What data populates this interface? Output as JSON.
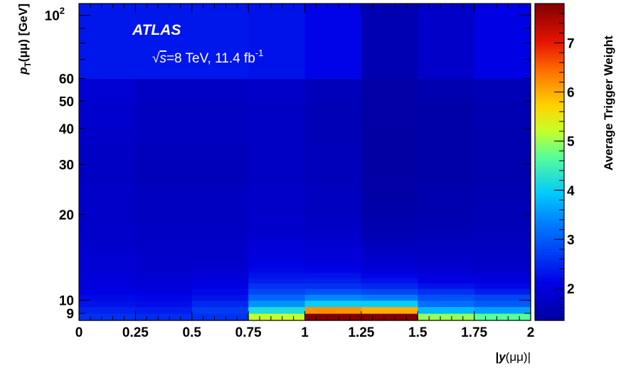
{
  "chart_data": {
    "type": "heatmap",
    "experiment_label": "ATLAS",
    "energy_label": {
      "sqrt": "√",
      "s": "s",
      "rest": "=8 TeV, 11.4 fb",
      "sup": "-1"
    },
    "xlabel": {
      "open": "|",
      "var": "y",
      "rest": "(μμ)|"
    },
    "ylabel": {
      "var": "p",
      "sub": "T",
      "rest": "(μμ) [GeV]"
    },
    "zlabel": "Average Trigger Weight",
    "x_edges": [
      0,
      0.25,
      0.5,
      0.75,
      1.0,
      1.25,
      1.5,
      1.75,
      2.0
    ],
    "y_edges": [
      8.5,
      9,
      9.5,
      10,
      10.5,
      11,
      11.5,
      12,
      12.5,
      13,
      14,
      15,
      16,
      17,
      18,
      20,
      22,
      25,
      30,
      35,
      40,
      50,
      60,
      110
    ],
    "x_range": [
      0,
      2
    ],
    "y_range": [
      8.5,
      110
    ],
    "z_range": [
      1.35,
      7.8
    ],
    "y_log": true,
    "x_ticks": [
      {
        "value": 0,
        "label": "0"
      },
      {
        "value": 0.25,
        "label": "0.25"
      },
      {
        "value": 0.5,
        "label": "0.5"
      },
      {
        "value": 0.75,
        "label": "0.75"
      },
      {
        "value": 1.0,
        "label": "1"
      },
      {
        "value": 1.25,
        "label": "1.25"
      },
      {
        "value": 1.5,
        "label": "1.5"
      },
      {
        "value": 1.75,
        "label": "1.75"
      },
      {
        "value": 2.0,
        "label": "2"
      }
    ],
    "y_ticks": [
      {
        "value": 9,
        "label": "9"
      },
      {
        "value": 10,
        "label": "10"
      },
      {
        "value": 20,
        "label": "20"
      },
      {
        "value": 30,
        "label": "30"
      },
      {
        "value": 40,
        "label": "40"
      },
      {
        "value": 50,
        "label": "50"
      },
      {
        "value": 60,
        "label": "60"
      },
      {
        "value": 100,
        "label": "10",
        "sup": "2"
      }
    ],
    "z_ticks": [
      {
        "value": 2,
        "label": "2"
      },
      {
        "value": 3,
        "label": "3"
      },
      {
        "value": 4,
        "label": "4"
      },
      {
        "value": 5,
        "label": "5"
      },
      {
        "value": 6,
        "label": "6"
      },
      {
        "value": 7,
        "label": "7"
      }
    ],
    "z_values": [
      [
        2.6,
        2.55,
        2.6,
        5.2,
        7.8,
        7.8,
        5.0,
        4.7
      ],
      [
        2.45,
        2.4,
        2.7,
        4.2,
        6.2,
        6.0,
        3.8,
        3.6
      ],
      [
        2.3,
        2.25,
        2.5,
        3.5,
        4.0,
        4.0,
        3.2,
        3.0
      ],
      [
        2.2,
        2.15,
        2.3,
        3.1,
        3.4,
        3.3,
        2.9,
        2.8
      ],
      [
        2.1,
        2.05,
        2.2,
        2.8,
        2.9,
        2.8,
        2.6,
        2.4
      ],
      [
        2.05,
        2.0,
        2.1,
        2.6,
        2.6,
        2.5,
        2.3,
        2.2
      ],
      [
        2.0,
        1.95,
        2.0,
        2.4,
        2.4,
        2.3,
        2.1,
        2.05
      ],
      [
        2.0,
        1.9,
        1.95,
        2.3,
        2.3,
        2.15,
        2.0,
        1.95
      ],
      [
        1.95,
        1.85,
        1.9,
        2.2,
        2.15,
        2.0,
        1.9,
        1.85
      ],
      [
        1.9,
        1.85,
        1.85,
        2.1,
        2.05,
        1.9,
        1.85,
        1.8
      ],
      [
        1.9,
        1.8,
        1.8,
        2.0,
        1.95,
        1.8,
        1.75,
        1.75
      ],
      [
        1.85,
        1.8,
        1.8,
        1.95,
        1.9,
        1.7,
        1.7,
        1.7
      ],
      [
        1.85,
        1.75,
        1.75,
        1.9,
        1.85,
        1.6,
        1.65,
        1.7
      ],
      [
        1.85,
        1.75,
        1.75,
        1.85,
        1.8,
        1.55,
        1.6,
        1.65
      ],
      [
        1.8,
        1.7,
        1.7,
        1.85,
        1.75,
        1.5,
        1.55,
        1.6
      ],
      [
        1.8,
        1.7,
        1.7,
        1.8,
        1.7,
        1.45,
        1.5,
        1.6
      ],
      [
        1.8,
        1.7,
        1.7,
        1.8,
        1.7,
        1.4,
        1.5,
        1.55
      ],
      [
        1.75,
        1.65,
        1.65,
        1.75,
        1.65,
        1.4,
        1.45,
        1.5
      ],
      [
        1.75,
        1.65,
        1.65,
        1.75,
        1.65,
        1.38,
        1.45,
        1.5
      ],
      [
        1.8,
        1.7,
        1.7,
        1.75,
        1.6,
        1.38,
        1.45,
        1.5
      ],
      [
        1.85,
        1.7,
        1.7,
        1.75,
        1.6,
        1.4,
        1.45,
        1.55
      ],
      [
        1.9,
        1.75,
        1.75,
        1.8,
        1.65,
        1.4,
        1.5,
        1.6
      ],
      [
        2.35,
        2.35,
        2.35,
        2.3,
        2.15,
        1.55,
        1.8,
        2.1
      ]
    ]
  }
}
